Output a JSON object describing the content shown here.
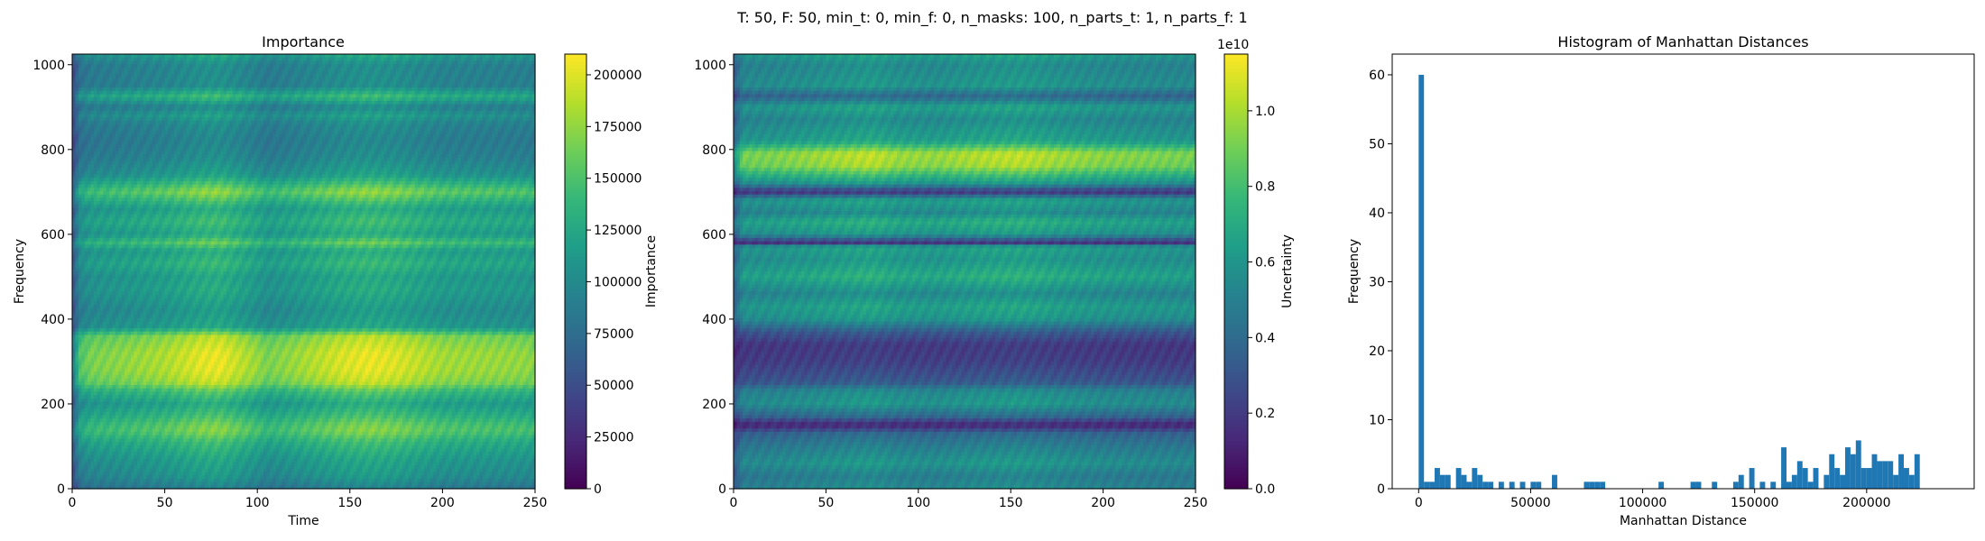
{
  "figure": {
    "suptitle": "T: 50, F: 50, min_t: 0, min_f: 0, n_masks: 100, n_parts_t: 1, n_parts_f: 1"
  },
  "colors": {
    "viridis_stops": [
      "#440154",
      "#482878",
      "#3e4989",
      "#31688e",
      "#26828e",
      "#1f9e89",
      "#35b779",
      "#6ece58",
      "#b5de2b",
      "#fde725"
    ],
    "hist_bar": "#1f77b4"
  },
  "chart_data": [
    {
      "type": "heatmap",
      "title": "Importance",
      "xlabel": "Time",
      "ylabel": "Frequency",
      "xlim": [
        0,
        250
      ],
      "ylim": [
        0,
        1025
      ],
      "xticks": [
        "0",
        "50",
        "100",
        "150",
        "200",
        "250"
      ],
      "yticks": [
        "0",
        "200",
        "400",
        "600",
        "800",
        "1000"
      ],
      "colorbar": {
        "label": "Importance",
        "range": [
          0,
          210000
        ],
        "ticks": [
          "0",
          "25000",
          "50000",
          "75000",
          "100000",
          "125000",
          "150000",
          "175000",
          "200000"
        ]
      },
      "freq_profile": [
        [
          0,
          0.45
        ],
        [
          30,
          0.55
        ],
        [
          70,
          0.6
        ],
        [
          110,
          0.7
        ],
        [
          135,
          0.82
        ],
        [
          150,
          0.8
        ],
        [
          170,
          0.72
        ],
        [
          200,
          0.62
        ],
        [
          230,
          0.75
        ],
        [
          250,
          0.92
        ],
        [
          280,
          0.97
        ],
        [
          320,
          0.97
        ],
        [
          360,
          0.9
        ],
        [
          380,
          0.6
        ],
        [
          420,
          0.55
        ],
        [
          470,
          0.62
        ],
        [
          500,
          0.6
        ],
        [
          530,
          0.68
        ],
        [
          560,
          0.62
        ],
        [
          580,
          0.78
        ],
        [
          600,
          0.62
        ],
        [
          630,
          0.7
        ],
        [
          660,
          0.62
        ],
        [
          700,
          0.85
        ],
        [
          740,
          0.58
        ],
        [
          780,
          0.5
        ],
        [
          820,
          0.47
        ],
        [
          860,
          0.5
        ],
        [
          880,
          0.58
        ],
        [
          900,
          0.48
        ],
        [
          925,
          0.7
        ],
        [
          950,
          0.5
        ],
        [
          1000,
          0.5
        ],
        [
          1025,
          0.62
        ]
      ],
      "time_profile": [
        [
          0,
          0.1
        ],
        [
          4,
          0.6
        ],
        [
          10,
          0.72
        ],
        [
          30,
          0.78
        ],
        [
          50,
          0.85
        ],
        [
          70,
          0.98
        ],
        [
          80,
          1.0
        ],
        [
          100,
          0.8
        ],
        [
          105,
          0.72
        ],
        [
          120,
          0.8
        ],
        [
          145,
          0.95
        ],
        [
          160,
          1.0
        ],
        [
          175,
          0.96
        ],
        [
          200,
          0.82
        ],
        [
          225,
          0.8
        ],
        [
          245,
          0.78
        ],
        [
          250,
          0.75
        ]
      ]
    },
    {
      "type": "heatmap",
      "title": "",
      "xlabel": "",
      "ylabel": "",
      "xlim": [
        0,
        250
      ],
      "ylim": [
        0,
        1025
      ],
      "xticks": [
        "0",
        "50",
        "100",
        "150",
        "200",
        "250"
      ],
      "yticks": [
        "0",
        "200",
        "400",
        "600",
        "800",
        "1000"
      ],
      "colorbar": {
        "label": "Uncertainty",
        "exponent": "1e10",
        "range": [
          0,
          1.15
        ],
        "ticks": [
          "0.0",
          "0.2",
          "0.4",
          "0.6",
          "0.8",
          "1.0"
        ]
      },
      "freq_profile": [
        [
          0,
          0.5
        ],
        [
          30,
          0.45
        ],
        [
          60,
          0.55
        ],
        [
          100,
          0.45
        ],
        [
          130,
          0.35
        ],
        [
          150,
          0.1
        ],
        [
          170,
          0.35
        ],
        [
          200,
          0.55
        ],
        [
          230,
          0.5
        ],
        [
          250,
          0.3
        ],
        [
          300,
          0.2
        ],
        [
          340,
          0.18
        ],
        [
          370,
          0.3
        ],
        [
          400,
          0.55
        ],
        [
          430,
          0.6
        ],
        [
          460,
          0.5
        ],
        [
          500,
          0.65
        ],
        [
          540,
          0.55
        ],
        [
          570,
          0.6
        ],
        [
          580,
          0.15
        ],
        [
          600,
          0.55
        ],
        [
          630,
          0.65
        ],
        [
          650,
          0.5
        ],
        [
          680,
          0.6
        ],
        [
          700,
          0.15
        ],
        [
          720,
          0.55
        ],
        [
          760,
          0.88
        ],
        [
          790,
          0.92
        ],
        [
          820,
          0.6
        ],
        [
          850,
          0.55
        ],
        [
          870,
          0.5
        ],
        [
          900,
          0.6
        ],
        [
          925,
          0.35
        ],
        [
          950,
          0.55
        ],
        [
          1000,
          0.5
        ],
        [
          1025,
          0.6
        ]
      ],
      "time_profile": [
        [
          0,
          0.3
        ],
        [
          5,
          0.8
        ],
        [
          20,
          0.82
        ],
        [
          40,
          0.88
        ],
        [
          60,
          0.95
        ],
        [
          75,
          1.0
        ],
        [
          90,
          0.9
        ],
        [
          110,
          0.88
        ],
        [
          130,
          0.95
        ],
        [
          155,
          1.0
        ],
        [
          175,
          0.92
        ],
        [
          200,
          0.85
        ],
        [
          230,
          0.82
        ],
        [
          250,
          0.8
        ]
      ]
    },
    {
      "type": "bar",
      "title": "Histogram of Manhattan Distances",
      "xlabel": "Manhattan Distance",
      "ylabel": "Frequency",
      "xlim": [
        -11800,
        248000
      ],
      "ylim": [
        0,
        63
      ],
      "xticks": [
        {
          "v": 0,
          "label": "0"
        },
        {
          "v": 50000,
          "label": "50000"
        },
        {
          "v": 100000,
          "label": "100000"
        },
        {
          "v": 150000,
          "label": "150000"
        },
        {
          "v": 200000,
          "label": "200000"
        }
      ],
      "yticks": [
        {
          "v": 0,
          "label": "0"
        },
        {
          "v": 10,
          "label": "10"
        },
        {
          "v": 20,
          "label": "20"
        },
        {
          "v": 30,
          "label": "30"
        },
        {
          "v": 40,
          "label": "40"
        },
        {
          "v": 50,
          "label": "50"
        },
        {
          "v": 60,
          "label": "60"
        }
      ],
      "bin_start": 0,
      "bin_width": 2380,
      "counts": [
        60,
        1,
        1,
        3,
        2,
        2,
        0,
        3,
        2,
        1,
        3,
        2,
        1,
        1,
        0,
        1,
        0,
        1,
        0,
        1,
        0,
        1,
        1,
        0,
        0,
        2,
        0,
        0,
        0,
        0,
        0,
        1,
        1,
        1,
        1,
        0,
        0,
        0,
        0,
        0,
        0,
        0,
        0,
        0,
        0,
        1,
        0,
        0,
        0,
        0,
        0,
        1,
        1,
        0,
        0,
        1,
        0,
        0,
        0,
        1,
        2,
        0,
        3,
        0,
        1,
        0,
        1,
        0,
        6,
        1,
        2,
        4,
        3,
        1,
        3,
        0,
        2,
        5,
        3,
        2,
        6,
        5,
        7,
        3,
        3,
        5,
        4,
        4,
        4,
        2,
        5,
        3,
        2,
        5
      ]
    }
  ]
}
